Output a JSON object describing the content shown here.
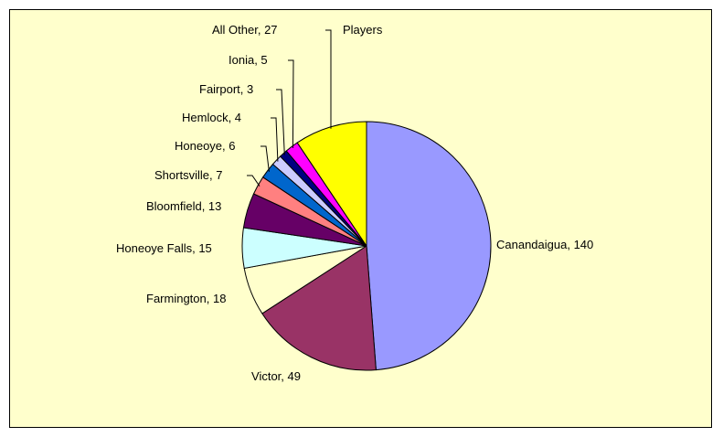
{
  "chart_data": {
    "type": "pie",
    "title": "",
    "legend_title": "Players",
    "series": [
      {
        "name": "Canandaigua",
        "value": 140,
        "label": "Canandaigua, 140",
        "color": "#9999ff"
      },
      {
        "name": "Victor",
        "value": 49,
        "label": "Victor, 49",
        "color": "#993366"
      },
      {
        "name": "Farmington",
        "value": 18,
        "label": "Farmington, 18",
        "color": "#ffffcc"
      },
      {
        "name": "Honeoye Falls",
        "value": 15,
        "label": "Honeoye Falls, 15",
        "color": "#ccffff"
      },
      {
        "name": "Bloomfield",
        "value": 13,
        "label": "Bloomfield, 13",
        "color": "#660066"
      },
      {
        "name": "Shortsville",
        "value": 7,
        "label": "Shortsville, 7",
        "color": "#ff8080"
      },
      {
        "name": "Honeoye",
        "value": 6,
        "label": "Honeoye, 6",
        "color": "#0066cc"
      },
      {
        "name": "Hemlock",
        "value": 4,
        "label": "Hemlock, 4",
        "color": "#ccccff"
      },
      {
        "name": "Fairport",
        "value": 3,
        "label": "Fairport, 3",
        "color": "#000080"
      },
      {
        "name": "Ionia",
        "value": 5,
        "label": "Ionia, 5",
        "color": "#ff00ff"
      },
      {
        "name": "All Other",
        "value": 27,
        "label": "All Other, 27",
        "color": "#ffff00"
      }
    ]
  }
}
